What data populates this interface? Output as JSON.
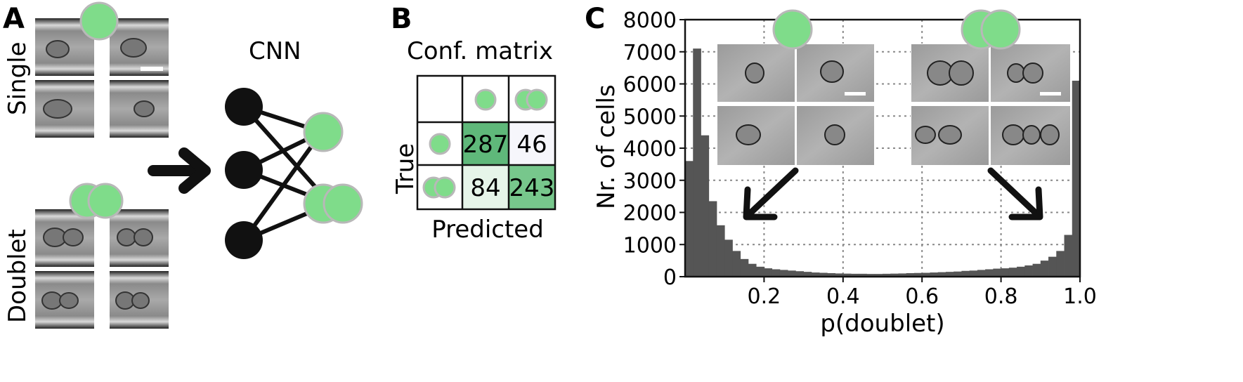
{
  "panels": {
    "a": {
      "letter": "A",
      "single_label": "Single",
      "doublet_label": "Doublet",
      "network_label": "CNN"
    },
    "b": {
      "letter": "B",
      "title": "Conf. matrix",
      "true_label": "True",
      "predicted_label": "Predicted",
      "matrix": [
        [
          287,
          46
        ],
        [
          84,
          243
        ]
      ]
    },
    "c": {
      "letter": "C"
    }
  },
  "colors": {
    "cell_green": "#7fdc8a",
    "cell_outline": "#b8b8b8",
    "bar": "#555555",
    "matrix_dark": "#5fb87a",
    "matrix_mid": "#77c78c",
    "matrix_light": "#e6f5e9",
    "matrix_white": "#f6f6fb"
  },
  "chart_data": {
    "type": "bar",
    "title": "",
    "xlabel": "p(doublet)",
    "ylabel": "Nr. of cells",
    "xlim": [
      0.0,
      1.0
    ],
    "ylim": [
      0,
      8000
    ],
    "xticks": [
      "0.2",
      "0.4",
      "0.6",
      "0.8",
      "1.0"
    ],
    "yticks": [
      "0",
      "1000",
      "2000",
      "3000",
      "4000",
      "5000",
      "6000",
      "7000",
      "8000"
    ],
    "grid": true,
    "bin_width": 0.02,
    "x": [
      0.01,
      0.03,
      0.05,
      0.07,
      0.09,
      0.11,
      0.13,
      0.15,
      0.17,
      0.19,
      0.21,
      0.23,
      0.25,
      0.27,
      0.29,
      0.31,
      0.33,
      0.35,
      0.37,
      0.39,
      0.41,
      0.43,
      0.45,
      0.47,
      0.49,
      0.51,
      0.53,
      0.55,
      0.57,
      0.59,
      0.61,
      0.63,
      0.65,
      0.67,
      0.69,
      0.71,
      0.73,
      0.75,
      0.77,
      0.79,
      0.81,
      0.83,
      0.85,
      0.87,
      0.89,
      0.91,
      0.93,
      0.95,
      0.97,
      0.99
    ],
    "values": [
      3600,
      7100,
      4400,
      2350,
      1600,
      1150,
      800,
      550,
      400,
      310,
      260,
      230,
      210,
      190,
      170,
      150,
      130,
      120,
      110,
      100,
      95,
      90,
      90,
      85,
      85,
      90,
      95,
      100,
      110,
      115,
      120,
      130,
      140,
      150,
      160,
      180,
      190,
      210,
      230,
      250,
      260,
      280,
      310,
      350,
      400,
      500,
      620,
      800,
      1300,
      6100
    ]
  }
}
